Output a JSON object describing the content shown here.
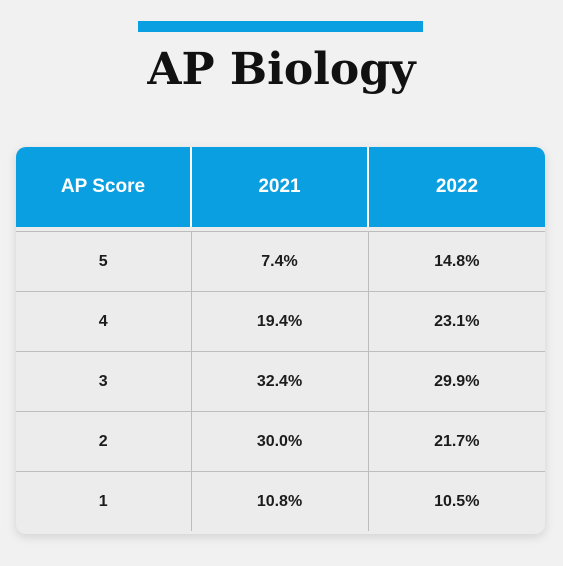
{
  "colors": {
    "accent": "#0a9fe0",
    "background": "#f1f1f1",
    "table_body": "#ececec"
  },
  "header": {
    "title": "AP Biology"
  },
  "chart_data": {
    "type": "table",
    "title": "AP Biology",
    "columns": [
      "AP Score",
      "2021",
      "2022"
    ],
    "rows": [
      [
        "5",
        "7.4%",
        "14.8%"
      ],
      [
        "4",
        "19.4%",
        "23.1%"
      ],
      [
        "3",
        "32.4%",
        "29.9%"
      ],
      [
        "2",
        "30.0%",
        "21.7%"
      ],
      [
        "1",
        "10.8%",
        "10.5%"
      ]
    ]
  }
}
